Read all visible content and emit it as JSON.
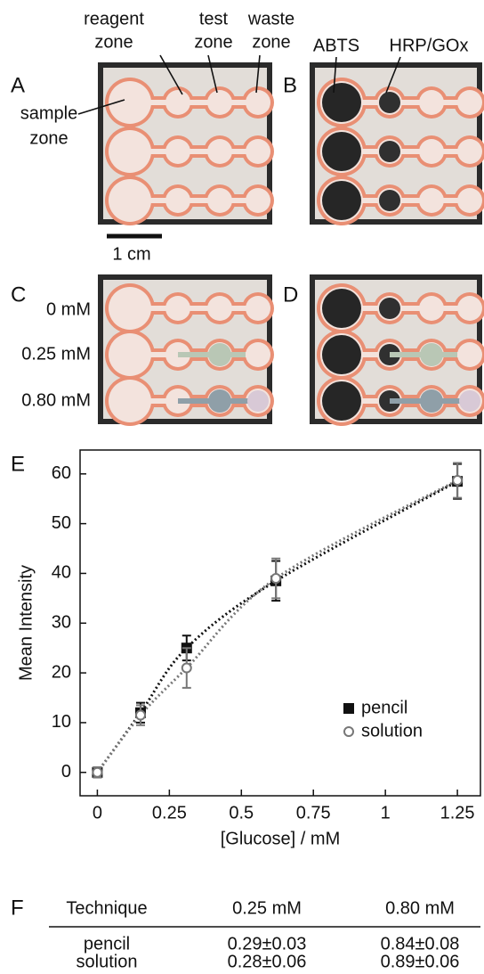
{
  "panels": [
    {
      "label": "A",
      "annotations": [
        {
          "lines": [
            "reagent",
            "zone"
          ]
        },
        {
          "lines": [
            "test",
            "zone"
          ]
        },
        {
          "lines": [
            "waste",
            "zone"
          ]
        },
        {
          "lines": [
            "sample",
            "zone"
          ]
        }
      ],
      "scale_bar": "1 cm"
    },
    {
      "label": "B",
      "annotations": [
        {
          "lines": [
            "ABTS"
          ]
        },
        {
          "lines": [
            "HRP/GOx"
          ]
        }
      ]
    },
    {
      "label": "C",
      "annotations": [
        {
          "lines": [
            "0 mM"
          ]
        },
        {
          "lines": [
            "0.25 mM"
          ]
        },
        {
          "lines": [
            "0.80 mM"
          ]
        }
      ]
    },
    {
      "label": "D"
    }
  ],
  "chart_panel_label": "E",
  "chart_data": {
    "type": "scatter",
    "x_label": "[Glucose] / mM",
    "y_label": "Mean Intensity",
    "xlim": [
      -0.06,
      1.33
    ],
    "ylim": [
      -4.7,
      64.8
    ],
    "xticks": [
      0,
      0.25,
      0.5,
      0.75,
      1,
      1.25
    ],
    "yticks": [
      0,
      10,
      20,
      30,
      40,
      50,
      60
    ],
    "legend": "lower right",
    "series": [
      {
        "name": "pencil",
        "color": "#111111",
        "marker": "square",
        "x": [
          0,
          0.15,
          0.31,
          0.62,
          1.25
        ],
        "values": [
          0,
          12,
          25,
          38.5,
          58.5
        ],
        "errors": [
          1,
          2,
          2.5,
          4,
          3.5
        ]
      },
      {
        "name": "solution",
        "color": "#777777",
        "marker": "open-circle",
        "x": [
          0,
          0.15,
          0.31,
          0.62,
          1.25
        ],
        "values": [
          0,
          11.5,
          21,
          39,
          58.7
        ],
        "errors": [
          1,
          2,
          4,
          4,
          3.5
        ]
      }
    ]
  },
  "table": {
    "label": "F",
    "header": [
      "Technique",
      "0.25 mM",
      "0.80 mM"
    ],
    "rows": [
      [
        "pencil",
        "0.29±0.03",
        "0.84±0.08"
      ],
      [
        "solution",
        "0.28±0.06",
        "0.89±0.06"
      ]
    ]
  }
}
